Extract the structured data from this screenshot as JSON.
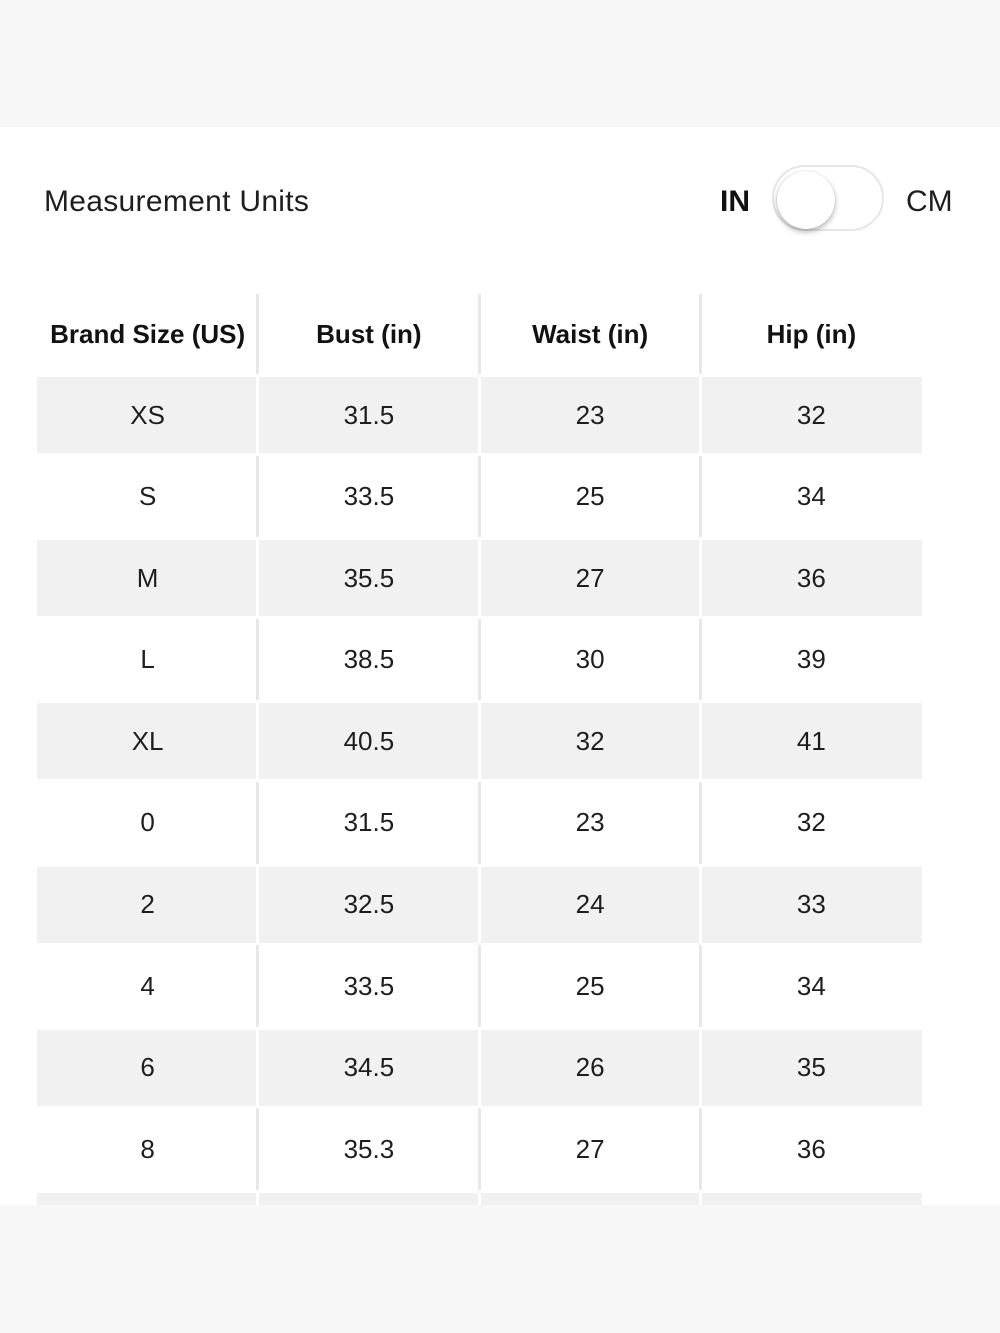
{
  "units": {
    "label": "Measurement Units",
    "option_in": "IN",
    "option_cm": "CM",
    "selected": "IN"
  },
  "table": {
    "headers": [
      "Brand Size (US)",
      "Bust (in)",
      "Waist (in)",
      "Hip (in)"
    ],
    "rows": [
      [
        "XS",
        "31.5",
        "23",
        "32"
      ],
      [
        "S",
        "33.5",
        "25",
        "34"
      ],
      [
        "M",
        "35.5",
        "27",
        "36"
      ],
      [
        "L",
        "38.5",
        "30",
        "39"
      ],
      [
        "XL",
        "40.5",
        "32",
        "41"
      ],
      [
        "0",
        "31.5",
        "23",
        "32"
      ],
      [
        "2",
        "32.5",
        "24",
        "33"
      ],
      [
        "4",
        "33.5",
        "25",
        "34"
      ],
      [
        "6",
        "34.5",
        "26",
        "35"
      ],
      [
        "8",
        "35.3",
        "27",
        "36"
      ],
      [
        "",
        "",
        "",
        ""
      ]
    ]
  }
}
